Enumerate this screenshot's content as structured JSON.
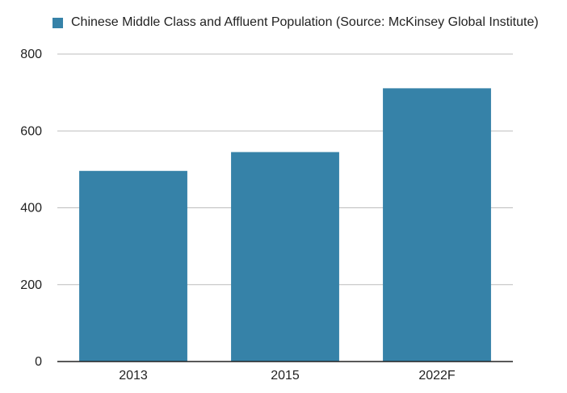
{
  "chart_data": {
    "type": "bar",
    "categories": [
      "2013",
      "2015",
      "2022F"
    ],
    "series": [
      {
        "name": "Chinese Middle Class and Affluent Population (Source: McKinsey Global Institute)",
        "values": [
          496,
          545,
          711
        ],
        "color": "#3682a8"
      }
    ],
    "title": "",
    "xlabel": "",
    "ylabel": "",
    "ylim": [
      0,
      800
    ],
    "yticks": [
      "0",
      "200",
      "400",
      "600",
      "800"
    ],
    "grid": true,
    "legend_position": "top-left"
  }
}
